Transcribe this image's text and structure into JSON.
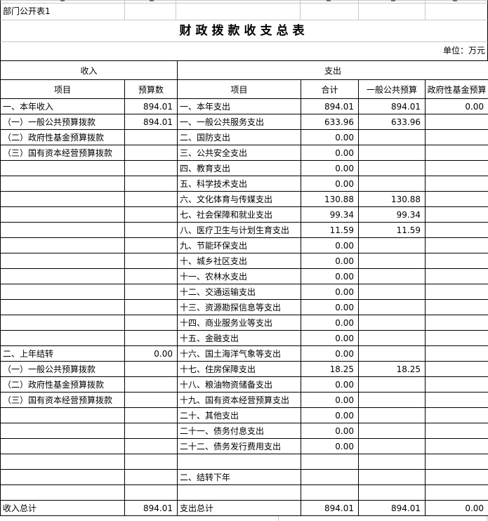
{
  "sheet": {
    "dept_label": "部门公开表1",
    "title": "财政拨款收支总表",
    "unit_label": "单位：万元"
  },
  "table": {
    "groups": {
      "income": "收入",
      "expense": "支出"
    },
    "columns": [
      "项目",
      "预算数",
      "项目",
      "合计",
      "一般公共预算",
      "政府性基金预算"
    ],
    "rows": [
      [
        "一、本年收入",
        "894.01",
        "一、本年支出",
        "894.01",
        "894.01",
        "0.00"
      ],
      [
        "（一）一般公共预算拨款",
        "894.01",
        "一、一般公共服务支出",
        "633.96",
        "633.96",
        ""
      ],
      [
        "（二）政府性基金预算拨款",
        "",
        "二、国防支出",
        "0.00",
        "",
        ""
      ],
      [
        "（三）国有资本经营预算拨款",
        "",
        "三、公共安全支出",
        "0.00",
        "",
        ""
      ],
      [
        "",
        "",
        "四、教育支出",
        "0.00",
        "",
        ""
      ],
      [
        "",
        "",
        "五、科学技术支出",
        "0.00",
        "",
        ""
      ],
      [
        "",
        "",
        "六、文化体育与传媒支出",
        "130.88",
        "130.88",
        ""
      ],
      [
        "",
        "",
        "七、社会保障和就业支出",
        "99.34",
        "99.34",
        ""
      ],
      [
        "",
        "",
        "八、医疗卫生与计划生育支出",
        "11.59",
        "11.59",
        ""
      ],
      [
        "",
        "",
        "九、节能环保支出",
        "0.00",
        "",
        ""
      ],
      [
        "",
        "",
        "十、城乡社区支出",
        "0.00",
        "",
        ""
      ],
      [
        "",
        "",
        "十一、农林水支出",
        "0.00",
        "",
        ""
      ],
      [
        "",
        "",
        "十二、交通运输支出",
        "0.00",
        "",
        ""
      ],
      [
        "",
        "",
        "十三、资源勘探信息等支出",
        "0.00",
        "",
        ""
      ],
      [
        "",
        "",
        "十四、商业服务业等支出",
        "0.00",
        "",
        ""
      ],
      [
        "",
        "",
        "十五、金融支出",
        "0.00",
        "",
        ""
      ],
      [
        "二、上年结转",
        "0.00",
        "十六、国土海洋气象等支出",
        "0.00",
        "",
        ""
      ],
      [
        "（一）一般公共预算拨款",
        "",
        "十七、住房保障支出",
        "18.25",
        "18.25",
        ""
      ],
      [
        "（二）政府性基金预算拨款",
        "",
        "十八、粮油物资储备支出",
        "0.00",
        "",
        ""
      ],
      [
        "（三）国有资本经营预算拨款",
        "",
        "十九、国有资本经营预算支出",
        "0.00",
        "",
        ""
      ],
      [
        "",
        "",
        "二十、其他支出",
        "0.00",
        "",
        ""
      ],
      [
        "",
        "",
        "二十一、债务付息支出",
        "0.00",
        "",
        ""
      ],
      [
        "",
        "",
        "二十二、债务发行费用支出",
        "0.00",
        "",
        ""
      ],
      [
        "",
        "",
        "",
        "",
        "",
        ""
      ],
      [
        "",
        "",
        "二、结转下年",
        "",
        "",
        ""
      ],
      [
        "",
        "",
        "",
        "",
        "",
        ""
      ]
    ],
    "total_row": [
      "收入总计",
      "894.01",
      "支出总计",
      "894.01",
      "894.01",
      "0.00"
    ]
  },
  "colors": {
    "table_border": "#000000",
    "sheet_grid": "#c8c8c8"
  }
}
